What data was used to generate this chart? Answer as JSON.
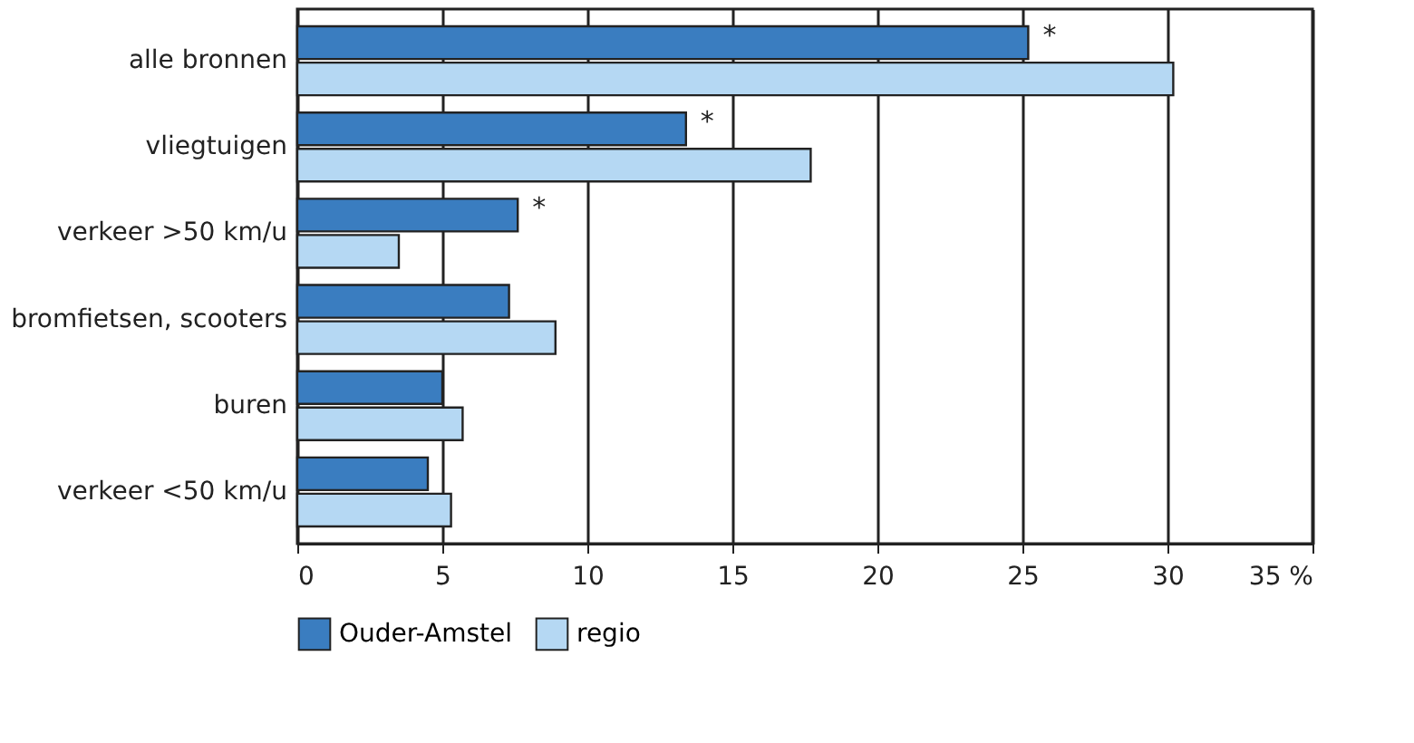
{
  "chart_data": {
    "type": "bar",
    "orientation": "horizontal",
    "categories": [
      "alle bronnen",
      "vliegtuigen",
      "verkeer >50 km/u",
      "bromfietsen, scooters",
      "buren",
      "verkeer <50 km/u"
    ],
    "series": [
      {
        "name": "Ouder-Amstel",
        "color": "#3a7dc0",
        "values": [
          25.2,
          13.4,
          7.6,
          7.3,
          5.0,
          4.5
        ]
      },
      {
        "name": "regio",
        "color": "#b5d8f3",
        "values": [
          30.2,
          17.7,
          3.5,
          8.9,
          5.7,
          5.3
        ]
      }
    ],
    "xlim": [
      0,
      35
    ],
    "xticks": [
      0,
      5,
      10,
      15,
      20,
      25,
      30,
      {
        "value": 35,
        "label": "35 %"
      }
    ],
    "grid": "x",
    "legend": "bottom left",
    "annotations": [
      {
        "text": "*",
        "x": 25.2,
        "y": "alle bronnen"
      },
      {
        "text": "*",
        "x": 13.4,
        "y": "vliegtuigen"
      },
      {
        "text": "*",
        "x": 7.6,
        "y": "verkeer >50 km/u"
      }
    ]
  }
}
